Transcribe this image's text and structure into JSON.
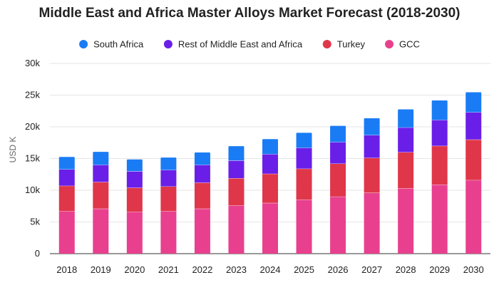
{
  "chart_data": {
    "type": "bar",
    "stacked": true,
    "title": "Middle East and Africa Master Alloys Market Forecast (2018-2030)",
    "xlabel": "",
    "ylabel": "USD K",
    "ylim": [
      0,
      30000
    ],
    "yticks": [
      0,
      5000,
      10000,
      15000,
      20000,
      25000,
      30000
    ],
    "ytick_labels": [
      "0",
      "5k",
      "10k",
      "15k",
      "20k",
      "25k",
      "30k"
    ],
    "grid": true,
    "legend_position": "top",
    "categories": [
      "2018",
      "2019",
      "2020",
      "2021",
      "2022",
      "2023",
      "2024",
      "2025",
      "2026",
      "2027",
      "2028",
      "2029",
      "2030"
    ],
    "series": [
      {
        "name": "GCC",
        "color": "#e8408e",
        "values": [
          6700,
          7100,
          6600,
          6700,
          7100,
          7600,
          8000,
          8500,
          9000,
          9600,
          10300,
          10900,
          11600
        ]
      },
      {
        "name": "Turkey",
        "color": "#e0364a",
        "values": [
          4000,
          4200,
          3800,
          3900,
          4100,
          4300,
          4600,
          4900,
          5200,
          5500,
          5700,
          6100,
          6400
        ]
      },
      {
        "name": "Rest of Middle East and Africa",
        "color": "#6a1fe8",
        "values": [
          2600,
          2700,
          2600,
          2600,
          2800,
          2800,
          3100,
          3300,
          3400,
          3600,
          3900,
          4100,
          4300
        ]
      },
      {
        "name": "South Africa",
        "color": "#1a7cf5",
        "values": [
          2000,
          2100,
          1900,
          2000,
          2000,
          2300,
          2400,
          2400,
          2600,
          2700,
          2900,
          3100,
          3200
        ]
      }
    ],
    "legend_order": [
      "South Africa",
      "Rest of Middle East and Africa",
      "Turkey",
      "GCC"
    ]
  }
}
